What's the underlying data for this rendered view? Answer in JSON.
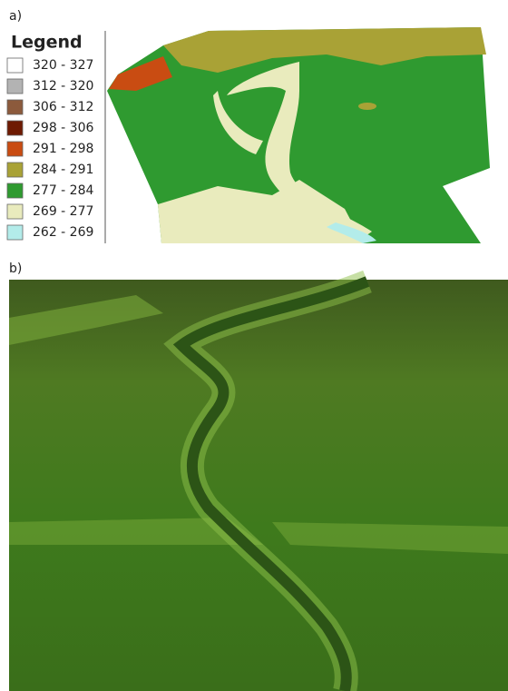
{
  "panels": {
    "a": {
      "label": "a)",
      "legend": {
        "title": "Legend",
        "items": [
          {
            "label": "320 - 327",
            "color": "#ffffff"
          },
          {
            "label": "312 - 320",
            "color": "#b3b3b3"
          },
          {
            "label": "306 - 312",
            "color": "#8c5a3c"
          },
          {
            "label": "298 - 306",
            "color": "#6e1a02"
          },
          {
            "label": "291 - 298",
            "color": "#c94c12"
          },
          {
            "label": "284 - 291",
            "color": "#a9a236"
          },
          {
            "label": "277 - 284",
            "color": "#2f9a30"
          },
          {
            "label": "269 - 277",
            "color": "#e9ebbd"
          },
          {
            "label": "262 - 269",
            "color": "#b3ecea"
          }
        ]
      }
    },
    "b": {
      "label": "b)"
    }
  }
}
